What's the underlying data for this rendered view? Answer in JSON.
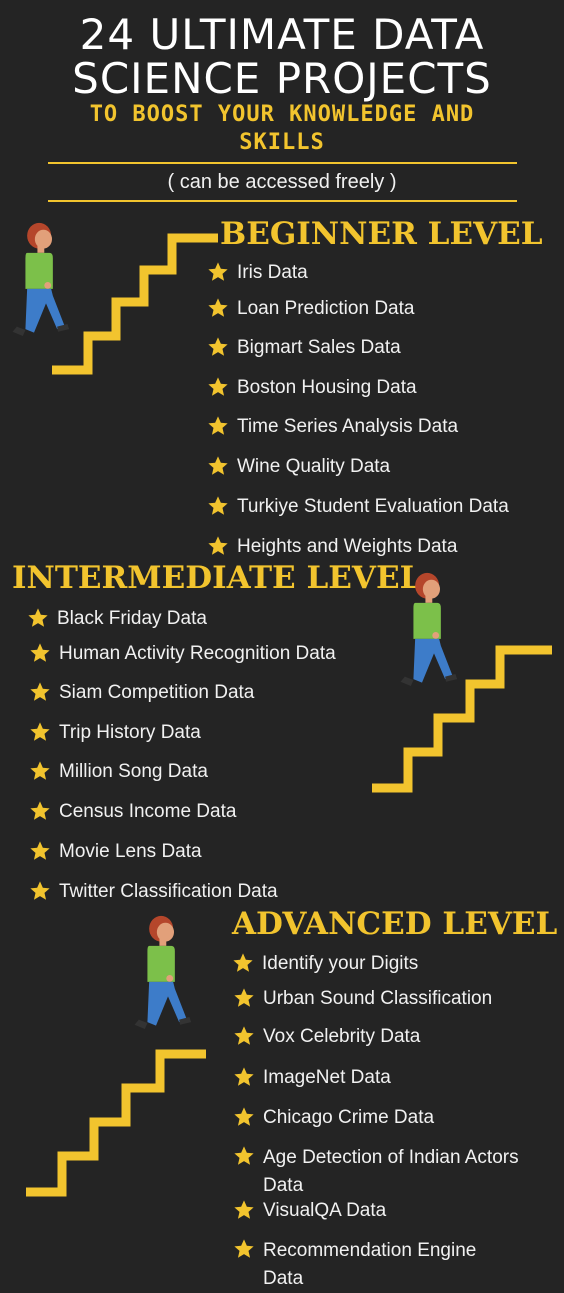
{
  "header": {
    "title_line1": "24 ULTIMATE DATA",
    "title_line2": "SCIENCE PROJECTS",
    "subtitle_line1": "TO BOOST YOUR KNOWLEDGE AND",
    "subtitle_line2": "SKILLS",
    "access_note": "( can be accessed freely )"
  },
  "colors": {
    "background": "#242424",
    "accent": "#f2c42e",
    "text": "#f1f1f1",
    "shirt": "#7cc04a",
    "pants": "#3d7cc9",
    "hair": "#b5462b"
  },
  "icons": {
    "item_bullet": "star-icon",
    "stairs": "staircase-icon",
    "figure": "walking-person-icon"
  },
  "beginner": {
    "heading": "BEGINNER LEVEL",
    "items": [
      "Iris Data",
      "Loan Prediction Data",
      "Bigmart Sales Data",
      "Boston Housing Data",
      "Time Series Analysis Data",
      "Wine Quality Data",
      "Turkiye Student Evaluation Data",
      "Heights and Weights Data"
    ]
  },
  "intermediate": {
    "heading": "INTERMEDIATE  LEVEL",
    "items": [
      "Black Friday Data",
      "Human Activity Recognition Data",
      "Siam Competition Data",
      "Trip History Data",
      "Million Song Data",
      "Census Income Data",
      "Movie Lens Data",
      "Twitter Classification Data"
    ]
  },
  "advanced": {
    "heading": "ADVANCED LEVEL",
    "items": [
      "Identify your Digits",
      "Urban Sound Classification",
      "Vox Celebrity Data",
      "ImageNet Data",
      "Chicago Crime Data",
      "Age Detection of Indian Actors Data",
      "VisualQA Data",
      "Recommendation Engine Data"
    ]
  }
}
